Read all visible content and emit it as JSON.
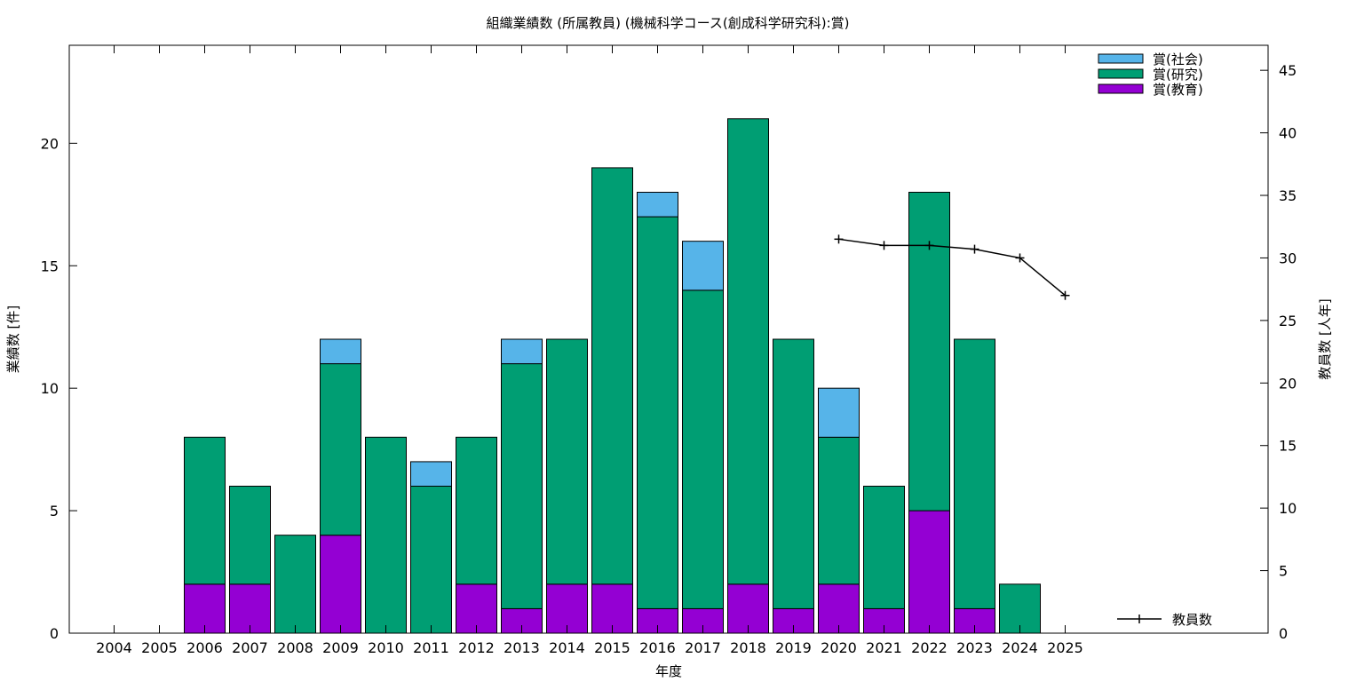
{
  "chart_data": {
    "type": "bar",
    "stacked": true,
    "title": "組織業績数 (所属教員) (機械科学コース(創成科学研究科):賞)",
    "xlabel": "年度",
    "ylabel_left": "業績数 [件]",
    "ylabel_right": "教員数 [人年]",
    "ylim_left": [
      0,
      24
    ],
    "ylim_right": [
      0,
      47
    ],
    "yticks_left": [
      0,
      5,
      10,
      15,
      20
    ],
    "yticks_right": [
      0,
      5,
      10,
      15,
      20,
      25,
      30,
      35,
      40,
      45
    ],
    "grid": false,
    "legend_position": "top-right",
    "categories": [
      "2004",
      "2005",
      "2006",
      "2007",
      "2008",
      "2009",
      "2010",
      "2011",
      "2012",
      "2013",
      "2014",
      "2015",
      "2016",
      "2017",
      "2018",
      "2019",
      "2020",
      "2021",
      "2022",
      "2023",
      "2024",
      "2025"
    ],
    "series": [
      {
        "name": "賞(教育)",
        "color": "#9400d3",
        "values": [
          0,
          0,
          2,
          2,
          0,
          4,
          0,
          0,
          2,
          1,
          2,
          2,
          1,
          1,
          2,
          1,
          2,
          1,
          5,
          1,
          0,
          0
        ]
      },
      {
        "name": "賞(研究)",
        "color": "#009e73",
        "values": [
          0,
          0,
          6,
          4,
          4,
          7,
          8,
          6,
          6,
          10,
          10,
          17,
          16,
          13,
          19,
          11,
          6,
          5,
          13,
          11,
          2,
          0
        ]
      },
      {
        "name": "賞(社会)",
        "color": "#56b4e9",
        "values": [
          0,
          0,
          0,
          0,
          0,
          1,
          0,
          1,
          0,
          1,
          0,
          0,
          1,
          2,
          0,
          0,
          2,
          0,
          0,
          0,
          0,
          0
        ]
      }
    ],
    "line_series": {
      "name": "教員数",
      "axis": "right",
      "color": "#000000",
      "x": [
        "2020",
        "2021",
        "2022",
        "2023",
        "2024",
        "2025"
      ],
      "values": [
        31.5,
        31,
        31,
        30.7,
        30,
        27
      ]
    },
    "legend_order": [
      "賞(社会)",
      "賞(研究)",
      "賞(教育)"
    ]
  }
}
